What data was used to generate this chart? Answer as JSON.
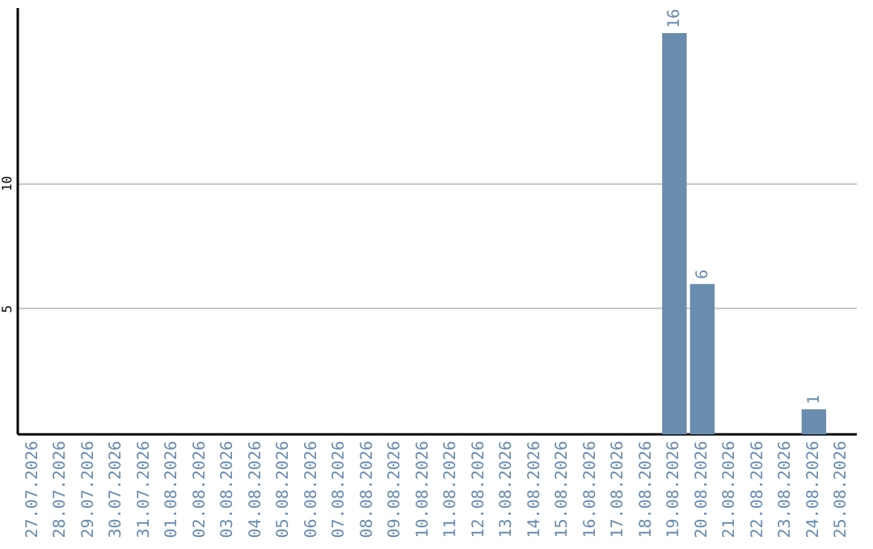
{
  "chart_data": {
    "type": "bar",
    "categories": [
      "27.07.2026",
      "28.07.2026",
      "29.07.2026",
      "30.07.2026",
      "31.07.2026",
      "01.08.2026",
      "02.08.2026",
      "03.08.2026",
      "04.08.2026",
      "05.08.2026",
      "06.08.2026",
      "07.08.2026",
      "08.08.2026",
      "09.08.2026",
      "10.08.2026",
      "11.08.2026",
      "12.08.2026",
      "13.08.2026",
      "14.08.2026",
      "15.08.2026",
      "16.08.2026",
      "17.08.2026",
      "18.08.2026",
      "19.08.2026",
      "20.08.2026",
      "21.08.2026",
      "22.08.2026",
      "23.08.2026",
      "24.08.2026",
      "25.08.2026"
    ],
    "values": [
      null,
      null,
      null,
      null,
      null,
      null,
      null,
      null,
      null,
      null,
      null,
      null,
      null,
      null,
      null,
      null,
      null,
      null,
      null,
      null,
      null,
      null,
      null,
      16,
      6,
      null,
      null,
      null,
      1,
      null
    ],
    "color": "#6a8caf",
    "ylim": [
      0,
      17
    ],
    "yticks": [
      5,
      10
    ],
    "grid": "y",
    "data_labels": true
  }
}
